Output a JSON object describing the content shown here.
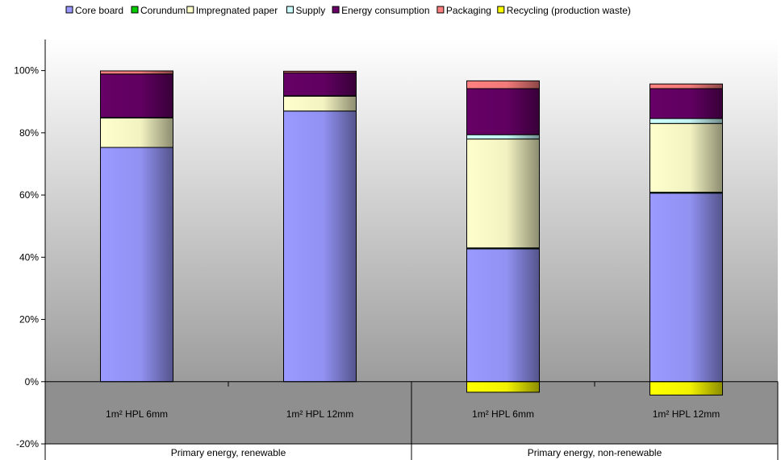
{
  "chart_data": {
    "type": "bar",
    "stacked": true,
    "categories": [
      "1m² HPL 6mm",
      "1m² HPL 12mm",
      "1m² HPL 6mm",
      "1m² HPL 12mm"
    ],
    "groups": [
      {
        "label": "Primary energy, renewable",
        "members": [
          0,
          1
        ]
      },
      {
        "label": "Primary energy, non-renewable",
        "members": [
          2,
          3
        ]
      }
    ],
    "series": [
      {
        "name": "Core board",
        "color": "#9999FF",
        "values": [
          75.3,
          87.0,
          42.7,
          60.6
        ]
      },
      {
        "name": "Corundum",
        "color": "#00CC00",
        "values": [
          0,
          0,
          0.3,
          0.3
        ]
      },
      {
        "name": "Impregnated paper",
        "color": "#FFFFCC",
        "values": [
          9.5,
          4.8,
          35.0,
          22.1
        ]
      },
      {
        "name": "Supply",
        "color": "#CCFFFF",
        "values": [
          0.1,
          0.1,
          1.4,
          1.6
        ]
      },
      {
        "name": "Energy consumption",
        "color": "#660066",
        "values": [
          14.0,
          7.4,
          14.8,
          9.6
        ]
      },
      {
        "name": "Packaging",
        "color": "#FF8080",
        "values": [
          1.0,
          0.5,
          2.5,
          1.5
        ]
      },
      {
        "name": "Recycling (production waste)",
        "color": "#FFFF00",
        "values": [
          0,
          0,
          -3.4,
          -4.3
        ]
      }
    ],
    "yaxis": {
      "ticks": [
        "-20%",
        "0%",
        "20%",
        "40%",
        "60%",
        "80%",
        "100%"
      ],
      "min": -20,
      "max": 110,
      "tick_step": 20
    },
    "legend": {
      "position": "top"
    },
    "grid": false,
    "background": "gradient"
  }
}
